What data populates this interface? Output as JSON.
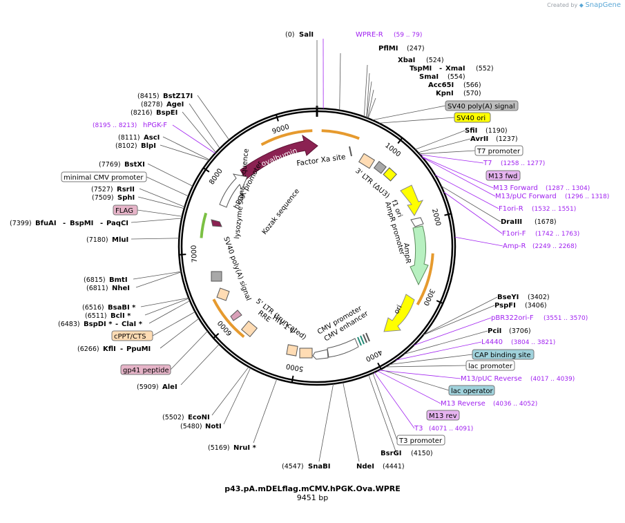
{
  "credit": {
    "prefix": "Created by",
    "brand": "SnapGene"
  },
  "plasmid": {
    "name": "p43.pA.mDELflag.mCMV.hPGK.Ova.WPRE",
    "size_text": "9451 bp",
    "length": 9451
  },
  "colors": {
    "enzyme": "#000000",
    "primer": "#a020f0",
    "ovalbumin": "#8b2252",
    "orange_arc": "#e69a2e",
    "ampR": "#b7f0c0",
    "ori": "#ffff00",
    "sv40": "#bdbdbd",
    "ltr": "#ffdcb4",
    "flag": "#e6b4c8",
    "cap": "#a0d2dc",
    "lac_operator": "#a0d2dc",
    "green_arc": "#7bc043"
  },
  "ticks": [
    "1000",
    "2000",
    "3000",
    "4000",
    "5000",
    "6000",
    "7000",
    "8000",
    "9000"
  ],
  "enzymes": [
    {
      "name": "SalI",
      "pos": "(0)"
    },
    {
      "name": "PflMI",
      "pos": "(247)"
    },
    {
      "name": "XbaI",
      "pos": "(524)"
    },
    {
      "name": "TspMI",
      "name2": "XmaI",
      "pos": "(552)"
    },
    {
      "name": "SmaI",
      "pos": "(554)"
    },
    {
      "name": "Acc65I",
      "pos": "(566)"
    },
    {
      "name": "KpnI",
      "pos": "(570)"
    },
    {
      "name": "SfiI",
      "pos": "(1190)"
    },
    {
      "name": "AvrII",
      "pos": "(1237)"
    },
    {
      "name": "DraIII",
      "pos": "(1678)"
    },
    {
      "name": "BseYI",
      "pos": "(3402)"
    },
    {
      "name": "PspFI",
      "pos": "(3406)"
    },
    {
      "name": "PciI",
      "pos": "(3706)"
    },
    {
      "name": "BsrGI",
      "pos": "(4150)"
    },
    {
      "name": "NdeI",
      "pos": "(4441)"
    },
    {
      "name": "SnaBI",
      "pos": "(4547)"
    },
    {
      "name": "NruI *",
      "pos": "(5169)"
    },
    {
      "name": "NotI",
      "pos": "(5480)"
    },
    {
      "name": "EcoNI",
      "pos": "(5502)"
    },
    {
      "name": "AleI",
      "pos": "(5909)"
    },
    {
      "name": "KflI",
      "name2": "PpuMI",
      "pos": "(6266)"
    },
    {
      "name": "BspDI *",
      "name2": "ClaI *",
      "pos": "(6483)"
    },
    {
      "name": "BclI *",
      "pos": "(6511)"
    },
    {
      "name": "BsaBI *",
      "pos": "(6516)"
    },
    {
      "name": "NheI",
      "pos": "(6811)"
    },
    {
      "name": "BmtI",
      "pos": "(6815)"
    },
    {
      "name": "MluI",
      "pos": "(7180)"
    },
    {
      "name": "BfuAI",
      "name2": "BspMI",
      "name3": "PaqCI",
      "pos": "(7399)"
    },
    {
      "name": "SphI",
      "pos": "(7509)"
    },
    {
      "name": "RsrII",
      "pos": "(7527)"
    },
    {
      "name": "BstXI",
      "pos": "(7769)"
    },
    {
      "name": "BlpI",
      "pos": "(8102)"
    },
    {
      "name": "AscI",
      "pos": "(8111)"
    },
    {
      "name": "BspEI",
      "pos": "(8216)"
    },
    {
      "name": "AgeI",
      "pos": "(8278)"
    },
    {
      "name": "BstZ17I",
      "pos": "(8415)"
    }
  ],
  "primers": [
    {
      "name": "WPRE-R",
      "range": "(59 .. 79)"
    },
    {
      "name": "T7",
      "range": "(1258 .. 1277)"
    },
    {
      "name": "M13 Forward",
      "range": "(1287 .. 1304)"
    },
    {
      "name": "M13/pUC Forward",
      "range": "(1296 .. 1318)"
    },
    {
      "name": "F1ori-R",
      "range": "(1532 .. 1551)"
    },
    {
      "name": "F1ori-F",
      "range": "(1742 .. 1763)"
    },
    {
      "name": "Amp-R",
      "range": "(2249 .. 2268)"
    },
    {
      "name": "pBR322ori-F",
      "range": "(3551 .. 3570)"
    },
    {
      "name": "L4440",
      "range": "(3804 .. 3821)"
    },
    {
      "name": "M13/pUC Reverse",
      "range": "(4017 .. 4039)"
    },
    {
      "name": "M13 Reverse",
      "range": "(4036 .. 4052)"
    },
    {
      "name": "T3",
      "range": "(4071 .. 4091)"
    },
    {
      "name": "hPGK-F",
      "range": "(8195 .. 8213)"
    }
  ],
  "boxed_labels": [
    {
      "name": "SV40 poly(A) signal",
      "color": "#bdbdbd"
    },
    {
      "name": "SV40 ori",
      "color": "#ffff00"
    },
    {
      "name": "T7 promoter",
      "color": "#ffffff"
    },
    {
      "name": "M13 fwd",
      "color": "#e6b4f0"
    },
    {
      "name": "CAP binding site",
      "color": "#a0d2dc"
    },
    {
      "name": "lac promoter",
      "color": "#ffffff"
    },
    {
      "name": "lac operator",
      "color": "#a0d2dc"
    },
    {
      "name": "M13 rev",
      "color": "#e6b4f0"
    },
    {
      "name": "T3 promoter",
      "color": "#ffffff"
    },
    {
      "name": "gp41 peptide",
      "color": "#e6b4c8"
    },
    {
      "name": "cPPT/CTS",
      "color": "#ffdcb4"
    },
    {
      "name": "FLAG",
      "color": "#e6b4c8"
    },
    {
      "name": "minimal CMV promoter",
      "color": "#ffffff"
    }
  ],
  "features": {
    "ovalbumin": "ovalbumin",
    "factor_xa": "Factor Xa site",
    "ltr3": "3' LTR (ΔU3)",
    "f1_ori": "f1 ori",
    "ampr_promoter": "AmpR promoter",
    "ampr": "AmpR",
    "ori": "ori",
    "cmv_promoter": "CMV promoter",
    "cmv_enhancer": "CMV enhancer",
    "ltr5": "5' LTR (truncated)",
    "hiv_psi": "HIV-1 Ψ",
    "rre": "RRE",
    "sv40_polya_inner": "SV40 poly(A) signal",
    "lysozyme": "lysozyme signal sequence",
    "kozak": "Kozak sequence",
    "hpgk": "hPGK promoter"
  }
}
